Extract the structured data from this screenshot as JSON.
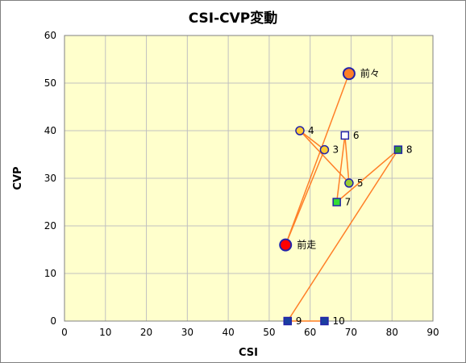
{
  "chart_data": {
    "type": "scatter",
    "title": "CSI-CVP変動",
    "xlabel": "CSI",
    "ylabel": "CVP",
    "xlim": [
      0,
      90
    ],
    "ylim": [
      0,
      60
    ],
    "x_ticks": [
      0,
      10,
      20,
      30,
      40,
      50,
      60,
      70,
      80,
      90
    ],
    "y_ticks": [
      0,
      10,
      20,
      30,
      40,
      50,
      60
    ],
    "grid": true,
    "plot_background": "#ffffcc",
    "grid_color": "#c0c0c0",
    "line_color": "#ff7f27",
    "points": [
      {
        "label": "前々",
        "x": 69.5,
        "y": 52,
        "shape": "circle",
        "fill": "#ff7f27",
        "stroke": "#2222aa"
      },
      {
        "label": "前走",
        "x": 54,
        "y": 16,
        "shape": "circle",
        "fill": "#ff0000",
        "stroke": "#2222aa"
      },
      {
        "label": "3",
        "x": 63.5,
        "y": 36,
        "shape": "circle",
        "fill": "#ffcc33",
        "stroke": "#2222aa"
      },
      {
        "label": "4",
        "x": 57.5,
        "y": 40,
        "shape": "circle",
        "fill": "#ffcc33",
        "stroke": "#2222aa"
      },
      {
        "label": "5",
        "x": 69.5,
        "y": 29,
        "shape": "circle",
        "fill": "#99cc33",
        "stroke": "#2222aa"
      },
      {
        "label": "6",
        "x": 68.5,
        "y": 39,
        "shape": "square",
        "fill": "#ffffff",
        "stroke": "#2222aa"
      },
      {
        "label": "7",
        "x": 66.5,
        "y": 25,
        "shape": "square",
        "fill": "#33dd33",
        "stroke": "#2222aa"
      },
      {
        "label": "8",
        "x": 81.5,
        "y": 36,
        "shape": "square",
        "fill": "#339933",
        "stroke": "#2222aa"
      },
      {
        "label": "9",
        "x": 54.5,
        "y": 0,
        "shape": "square",
        "fill": "#1a3fa0",
        "stroke": "#2222aa"
      },
      {
        "label": "10",
        "x": 63.5,
        "y": 0,
        "shape": "square",
        "fill": "#1a3fa0",
        "stroke": "#2222aa"
      }
    ]
  }
}
